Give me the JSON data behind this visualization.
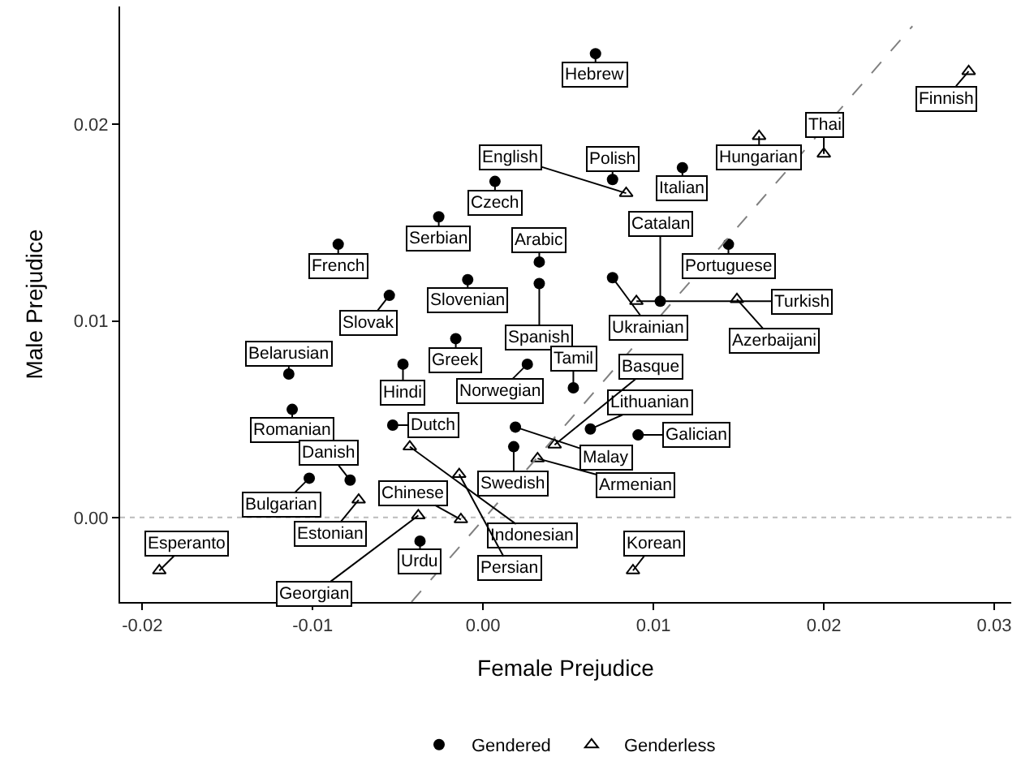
{
  "chart_data": {
    "type": "scatter",
    "xlabel": "Female Prejudice",
    "ylabel": "Male Prejudice",
    "xlim": [
      -0.0213,
      0.031
    ],
    "ylim": [
      -0.0043,
      0.026
    ],
    "xticks": [
      {
        "value": -0.02,
        "label": "-0.02"
      },
      {
        "value": -0.01,
        "label": "-0.01"
      },
      {
        "value": 0,
        "label": "0.00"
      },
      {
        "value": 0.01,
        "label": "0.01"
      },
      {
        "value": 0.02,
        "label": "0.02"
      },
      {
        "value": 0.03,
        "label": "0.03"
      }
    ],
    "yticks": [
      {
        "value": 0,
        "label": "0.00"
      },
      {
        "value": 0.01,
        "label": "0.01"
      },
      {
        "value": 0.02,
        "label": "0.02"
      }
    ],
    "grid": false,
    "legend": "bottom",
    "series": [
      {
        "name": "Gendered",
        "color": "#000000",
        "marker": "circle",
        "x": [
          0.0066,
          0.0007,
          -0.0026,
          -0.0085,
          0.0033,
          -0.0009,
          0.0033,
          -0.0055,
          -0.0016,
          0.0026,
          -0.0114,
          -0.0047,
          -0.0112,
          -0.0053,
          0.0018,
          0.0019,
          -0.0078,
          -0.0102,
          -0.0037,
          0.0117,
          0.0076,
          0.0144,
          0.0076,
          0.0104,
          0.0053,
          0.0063,
          0.0091
        ],
        "values": [
          0.0236,
          0.0171,
          0.0153,
          0.0139,
          0.013,
          0.0121,
          0.0119,
          0.0113,
          0.0091,
          0.0078,
          0.0073,
          0.0078,
          0.0055,
          0.0047,
          0.0036,
          0.0046,
          0.0019,
          0.002,
          -0.0012,
          0.0178,
          0.0172,
          0.0139,
          0.0122,
          0.011,
          0.0066,
          0.0045,
          0.0042
        ],
        "value_labels": [
          "Hebrew",
          "Czech",
          "Serbian",
          "French",
          "Arabic",
          "Slovenian",
          "Spanish",
          "Slovak",
          "Greek",
          "Norwegian",
          "Belarusian",
          "Hindi",
          "Romanian",
          "Dutch",
          "Swedish",
          "Malay",
          "Danish",
          "Bulgarian",
          "Urdu",
          "Italian",
          "Polish",
          "Portuguese",
          "Ukrainian",
          "Catalan",
          "Tamil",
          "Lithuanian",
          "Galician"
        ]
      },
      {
        "name": "Genderless",
        "color": "#000000",
        "marker": "triangle",
        "x": [
          -0.0043,
          0.0032,
          0.0042,
          -0.0073,
          -0.0014,
          -0.0038,
          -0.0013,
          -0.019,
          0.0285,
          0.0162,
          0.0084,
          0.02,
          0.0149,
          0.009,
          0.0088
        ],
        "values": [
          0.0036,
          0.003,
          0.0037,
          0.0009,
          0.0022,
          0.0001,
          -0.0001,
          -0.0027,
          0.0227,
          0.0194,
          0.0165,
          0.0185,
          0.0111,
          0.011,
          -0.0027
        ],
        "value_labels": [
          "Indonesian",
          "Armenian",
          "Basque",
          "Estonian",
          "Persian",
          "Georgian",
          "Chinese",
          "Esperanto",
          "Finnish",
          "Hungarian",
          "English",
          "Thai",
          "Azerbaijani",
          "Turkish",
          "Korean"
        ]
      },
      {
        "type": "line",
        "color": "#808080",
        "line_style": "dashed",
        "marker": "none",
        "x": [
          -0.0042,
          0.0252
        ],
        "values": [
          -0.0043,
          0.025
        ]
      }
    ],
    "ref_lines": [
      {
        "axis": "y",
        "value": 0,
        "color": "#bbbbbb",
        "line_style": "dotted"
      }
    ]
  }
}
